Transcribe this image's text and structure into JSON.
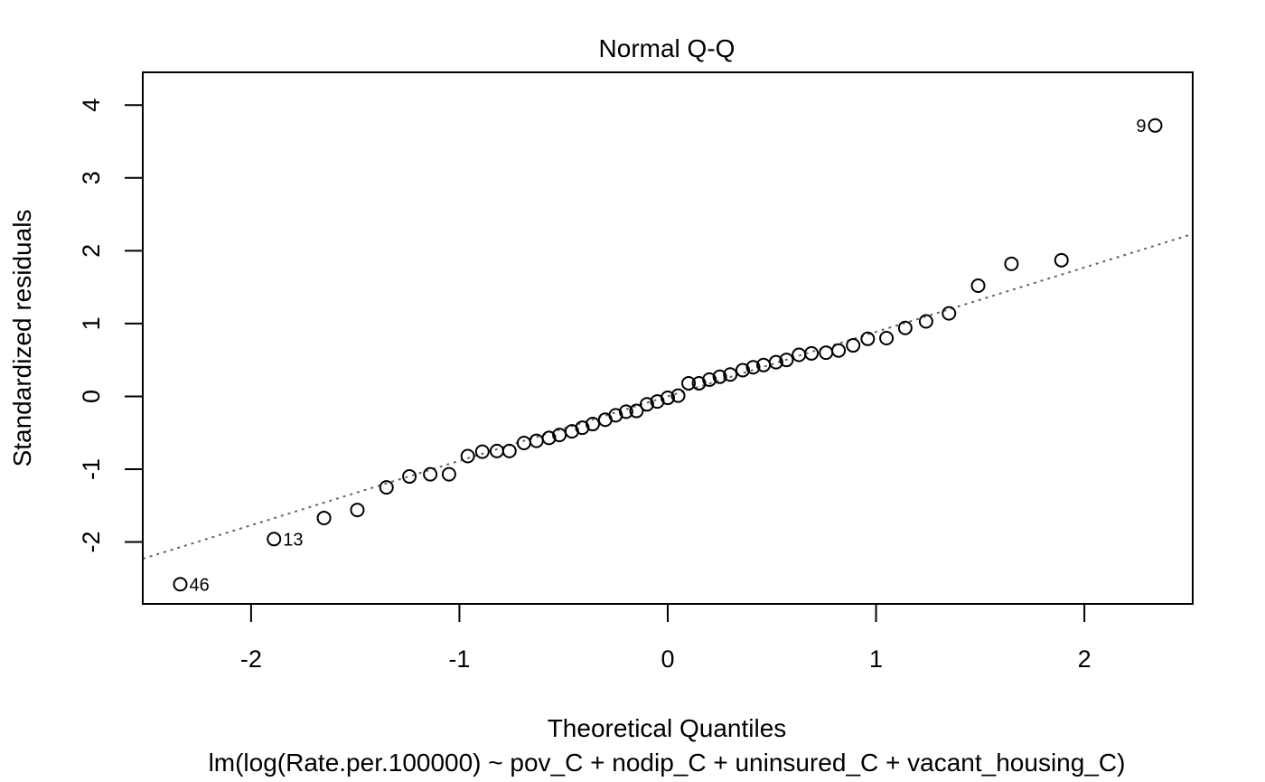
{
  "chart_data": {
    "type": "scatter",
    "title": "Normal Q-Q",
    "xlabel": "Theoretical Quantiles",
    "ylabel": "Standardized residuals",
    "caption": "lm(log(Rate.per.100000) ~ pov_C + nodip_C + uninsured_C + vacant_housing_C)",
    "xlim": [
      -2.52,
      2.52
    ],
    "ylim": [
      -2.85,
      4.45
    ],
    "x_ticks": [
      {
        "value": -2,
        "label": "-2"
      },
      {
        "value": -1,
        "label": "-1"
      },
      {
        "value": 0,
        "label": "0"
      },
      {
        "value": 1,
        "label": "1"
      },
      {
        "value": 2,
        "label": "2"
      }
    ],
    "y_ticks": [
      {
        "value": -2,
        "label": "-2"
      },
      {
        "value": -1,
        "label": "-1"
      },
      {
        "value": 0,
        "label": "0"
      },
      {
        "value": 1,
        "label": "1"
      },
      {
        "value": 2,
        "label": "2"
      },
      {
        "value": 3,
        "label": "3"
      },
      {
        "value": 4,
        "label": "4"
      }
    ],
    "grid": false,
    "reference_line": {
      "style": "dotted",
      "color": "#666666",
      "intercept": 0.0,
      "slope": 0.885
    },
    "points": [
      {
        "x": -2.34,
        "y": -2.58
      },
      {
        "x": -1.89,
        "y": -1.96
      },
      {
        "x": -1.65,
        "y": -1.67
      },
      {
        "x": -1.49,
        "y": -1.56
      },
      {
        "x": -1.35,
        "y": -1.25
      },
      {
        "x": -1.24,
        "y": -1.1
      },
      {
        "x": -1.14,
        "y": -1.07
      },
      {
        "x": -1.05,
        "y": -1.07
      },
      {
        "x": -0.96,
        "y": -0.82
      },
      {
        "x": -0.89,
        "y": -0.76
      },
      {
        "x": -0.82,
        "y": -0.75
      },
      {
        "x": -0.76,
        "y": -0.75
      },
      {
        "x": -0.69,
        "y": -0.64
      },
      {
        "x": -0.63,
        "y": -0.61
      },
      {
        "x": -0.57,
        "y": -0.57
      },
      {
        "x": -0.52,
        "y": -0.53
      },
      {
        "x": -0.46,
        "y": -0.48
      },
      {
        "x": -0.41,
        "y": -0.43
      },
      {
        "x": -0.36,
        "y": -0.38
      },
      {
        "x": -0.3,
        "y": -0.32
      },
      {
        "x": -0.25,
        "y": -0.26
      },
      {
        "x": -0.2,
        "y": -0.21
      },
      {
        "x": -0.15,
        "y": -0.2
      },
      {
        "x": -0.1,
        "y": -0.11
      },
      {
        "x": -0.05,
        "y": -0.07
      },
      {
        "x": 0.0,
        "y": -0.02
      },
      {
        "x": 0.05,
        "y": 0.01
      },
      {
        "x": 0.1,
        "y": 0.18
      },
      {
        "x": 0.15,
        "y": 0.18
      },
      {
        "x": 0.2,
        "y": 0.23
      },
      {
        "x": 0.25,
        "y": 0.27
      },
      {
        "x": 0.3,
        "y": 0.3
      },
      {
        "x": 0.36,
        "y": 0.36
      },
      {
        "x": 0.41,
        "y": 0.4
      },
      {
        "x": 0.46,
        "y": 0.43
      },
      {
        "x": 0.52,
        "y": 0.47
      },
      {
        "x": 0.57,
        "y": 0.5
      },
      {
        "x": 0.63,
        "y": 0.57
      },
      {
        "x": 0.69,
        "y": 0.59
      },
      {
        "x": 0.76,
        "y": 0.6
      },
      {
        "x": 0.82,
        "y": 0.63
      },
      {
        "x": 0.89,
        "y": 0.7
      },
      {
        "x": 0.96,
        "y": 0.79
      },
      {
        "x": 1.05,
        "y": 0.8
      },
      {
        "x": 1.14,
        "y": 0.94
      },
      {
        "x": 1.24,
        "y": 1.03
      },
      {
        "x": 1.35,
        "y": 1.14
      },
      {
        "x": 1.49,
        "y": 1.52
      },
      {
        "x": 1.65,
        "y": 1.82
      },
      {
        "x": 1.89,
        "y": 1.87
      },
      {
        "x": 2.34,
        "y": 3.72
      }
    ],
    "point_labels": [
      {
        "x": 2.34,
        "y": 3.72,
        "text": "9",
        "side": "left"
      },
      {
        "x": -1.89,
        "y": -1.96,
        "text": "13",
        "side": "right"
      },
      {
        "x": -2.34,
        "y": -2.58,
        "text": "46",
        "side": "right"
      }
    ]
  }
}
